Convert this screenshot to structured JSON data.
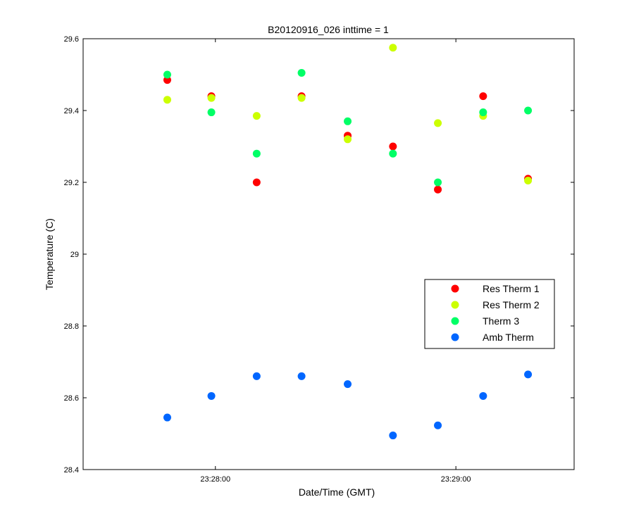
{
  "chart_data": {
    "type": "scatter",
    "title": "B20120916_026 inttime = 1",
    "xlabel": "Date/Time (GMT)",
    "ylabel": "Temperature (C)",
    "x_unit": "seconds",
    "xlim": [
      -33,
      89.5
    ],
    "ylim": [
      28.4,
      29.6
    ],
    "x_ticks": [
      {
        "value": 0,
        "label": "23:28:00"
      },
      {
        "value": 60,
        "label": "23:29:00"
      }
    ],
    "y_ticks": [
      {
        "value": 28.4,
        "label": "28.4"
      },
      {
        "value": 28.6,
        "label": "28.6"
      },
      {
        "value": 28.8,
        "label": "28.8"
      },
      {
        "value": 29.0,
        "label": "29"
      },
      {
        "value": 29.2,
        "label": "29.2"
      },
      {
        "value": 29.4,
        "label": "29.4"
      },
      {
        "value": 29.6,
        "label": "29.6"
      }
    ],
    "grid": false,
    "legend_position": "right-middle",
    "x": [
      -12,
      -1,
      10.3,
      21.5,
      33,
      44.3,
      55.5,
      66.8,
      78
    ],
    "series": [
      {
        "name": "Res Therm 1",
        "color": "#ff0000",
        "values": [
          29.485,
          29.44,
          29.2,
          29.44,
          29.33,
          29.3,
          29.18,
          29.44,
          29.21
        ]
      },
      {
        "name": "Res Therm 2",
        "color": "#ccff00",
        "values": [
          29.43,
          29.435,
          29.385,
          29.435,
          29.32,
          29.575,
          29.365,
          29.385,
          29.205
        ]
      },
      {
        "name": "Therm 3",
        "color": "#00ff66",
        "values": [
          29.5,
          29.395,
          29.28,
          29.505,
          29.37,
          29.28,
          29.2,
          29.395,
          29.4
        ]
      },
      {
        "name": "Amb Therm",
        "color": "#0066ff",
        "values": [
          28.545,
          28.605,
          28.66,
          28.66,
          28.638,
          28.495,
          28.523,
          28.605,
          28.665
        ]
      }
    ]
  }
}
